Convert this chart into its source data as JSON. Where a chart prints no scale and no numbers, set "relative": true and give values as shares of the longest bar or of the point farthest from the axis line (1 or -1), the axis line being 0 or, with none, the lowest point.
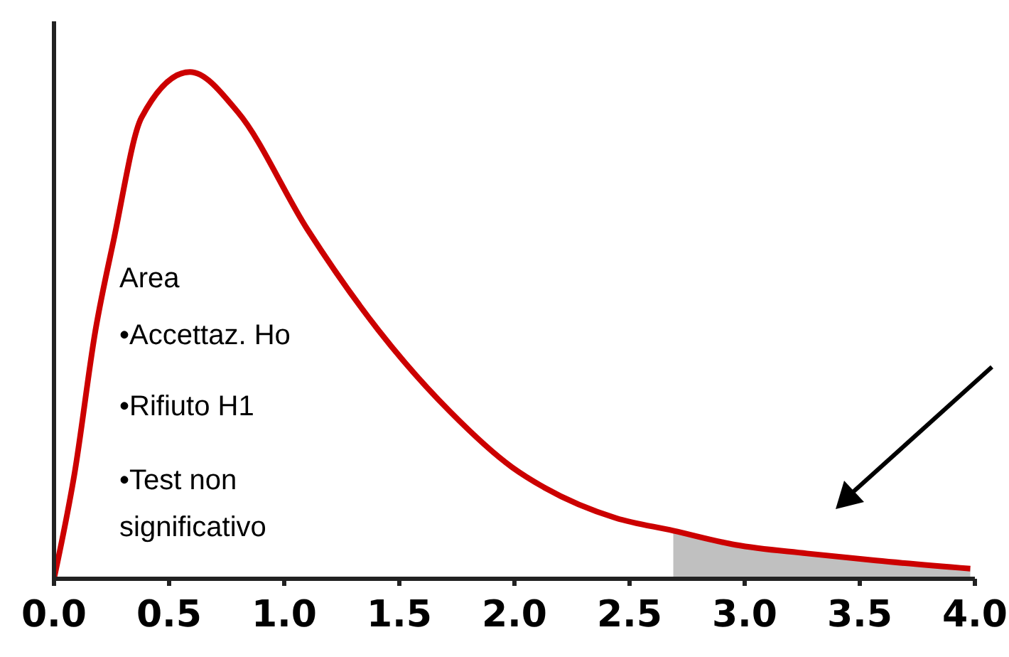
{
  "chart_data": {
    "type": "line",
    "relative": true,
    "annotations": [
      "Area",
      "•Accettaz. Ho",
      "•Rifiuto H1",
      "•Test non significativo"
    ],
    "xlim": [
      0,
      4
    ],
    "xticks": [
      {
        "value": 0,
        "label": "0.0"
      },
      {
        "value": 0.5,
        "label": "0.5"
      },
      {
        "value": 1,
        "label": "1.0"
      },
      {
        "value": 1.5,
        "label": "1.5"
      },
      {
        "value": 2,
        "label": "2.0"
      },
      {
        "value": 2.5,
        "label": "2.5"
      },
      {
        "value": 3,
        "label": "3.0"
      },
      {
        "value": 3.5,
        "label": "3.5"
      },
      {
        "value": 4,
        "label": "4.0"
      }
    ],
    "series": [
      {
        "type": "area",
        "color": "#c0c0c0",
        "x": [
          2.69,
          2.96,
          3.27,
          3.57,
          3.98
        ],
        "values": [
          0.095,
          0.067,
          0.05,
          0.036,
          0.02
        ]
      },
      {
        "color": "#cc0000",
        "x": [
          0,
          0.09,
          0.18,
          0.26,
          0.38,
          0.59,
          0.8,
          1.1,
          1.41,
          1.72,
          1.99,
          2.13,
          2.44,
          2.69,
          2.96,
          3.27,
          3.57,
          3.98
        ],
        "values": [
          0,
          0.21,
          0.49,
          0.67,
          0.91,
          1,
          0.92,
          0.69,
          0.49,
          0.33,
          0.22,
          0.18,
          0.12,
          0.095,
          0.067,
          0.05,
          0.036,
          0.02
        ]
      }
    ]
  }
}
